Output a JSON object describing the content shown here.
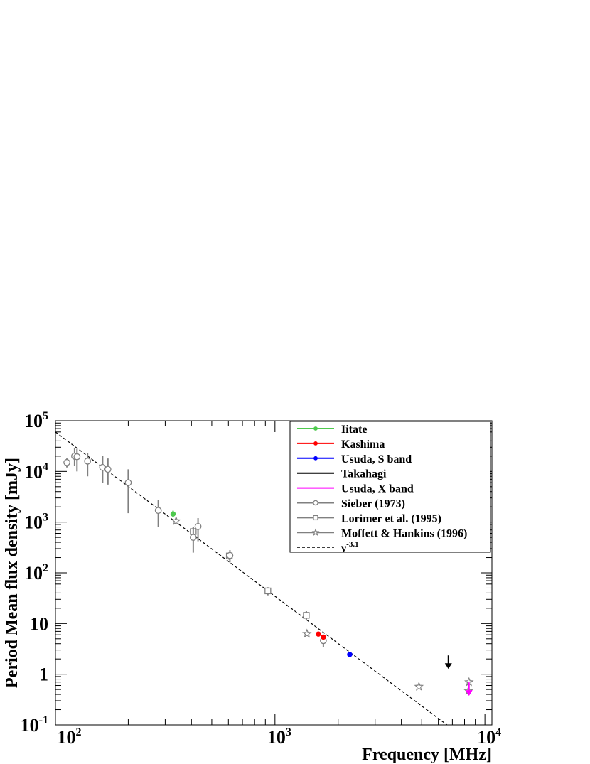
{
  "chart_data": {
    "type": "scatter",
    "title": "",
    "xlabel": "Frequency [MHz]",
    "ylabel": "Period Mean flux density [mJy]",
    "xscale": "log",
    "yscale": "log",
    "xlim": [
      90,
      10800
    ],
    "ylim": [
      0.1,
      100000
    ],
    "x_ticks": [
      {
        "value": 100,
        "base": "10",
        "exp": "2"
      },
      {
        "value": 1000,
        "base": "10",
        "exp": "3"
      },
      {
        "value": 10000,
        "base": "10",
        "exp": "4"
      }
    ],
    "y_ticks": [
      {
        "value": 100000,
        "base": "10",
        "exp": "5"
      },
      {
        "value": 10000,
        "base": "10",
        "exp": "4"
      },
      {
        "value": 1000,
        "base": "10",
        "exp": "3"
      },
      {
        "value": 100,
        "base": "10",
        "exp": "2"
      },
      {
        "value": 10,
        "base": "10",
        "exp": ""
      },
      {
        "value": 1,
        "base": "1",
        "exp": ""
      },
      {
        "value": 0.1,
        "base": "10",
        "exp": "-1"
      }
    ],
    "grid": false,
    "legend_position": "top-right",
    "series": [
      {
        "name": "Iitate",
        "color": "#4ec94e",
        "marker": "filled-circle",
        "points": [
          {
            "x": 327,
            "y": 1450,
            "ylo": 1250,
            "yhi": 1680
          }
        ]
      },
      {
        "name": "Kashima",
        "color": "#ff0000",
        "marker": "filled-circle",
        "points": [
          {
            "x": 1610,
            "y": 6.2,
            "ylo": 5.6,
            "yhi": 6.9
          },
          {
            "x": 1700,
            "y": 5.4,
            "ylo": 4.9,
            "yhi": 5.9
          }
        ]
      },
      {
        "name": "Usuda, S band",
        "color": "#0000ff",
        "marker": "filled-circle",
        "points": [
          {
            "x": 2270,
            "y": 2.45,
            "ylo": 2.3,
            "yhi": 2.6
          }
        ]
      },
      {
        "name": "Takahagi",
        "color": "#000000",
        "marker": "upper-limit",
        "points": [
          {
            "x": 6700,
            "y": 1.7
          }
        ]
      },
      {
        "name": "Usuda, X band",
        "color": "#ff00ff",
        "marker": "upper-limit",
        "points": [
          {
            "x": 8400,
            "y": 0.5
          }
        ]
      },
      {
        "name": "Sieber (1973)",
        "color": "#808080",
        "marker": "open-circle",
        "points": [
          {
            "x": 102,
            "y": 15000,
            "ylo": 12000,
            "yhi": 18000
          },
          {
            "x": 111,
            "y": 20000,
            "ylo": 13000,
            "yhi": 29000
          },
          {
            "x": 114,
            "y": 19500,
            "ylo": 10000,
            "yhi": 28000
          },
          {
            "x": 128,
            "y": 16000,
            "ylo": 8000,
            "yhi": 23000
          },
          {
            "x": 151,
            "y": 12000,
            "ylo": 6000,
            "yhi": 20000
          },
          {
            "x": 160,
            "y": 11000,
            "ylo": 5500,
            "yhi": 18000
          },
          {
            "x": 200,
            "y": 6000,
            "ylo": 1500,
            "yhi": 11000
          },
          {
            "x": 278,
            "y": 1700,
            "ylo": 800,
            "yhi": 2700
          },
          {
            "x": 408,
            "y": 500,
            "ylo": 250,
            "yhi": 800
          },
          {
            "x": 430,
            "y": 820,
            "ylo": 420,
            "yhi": 1200
          },
          {
            "x": 610,
            "y": 220,
            "ylo": 160,
            "yhi": 280
          },
          {
            "x": 1700,
            "y": 4.6,
            "ylo": 3.4,
            "yhi": 5.8
          }
        ]
      },
      {
        "name": "Lorimer et al. (1995)",
        "color": "#808080",
        "marker": "open-square",
        "points": [
          {
            "x": 408,
            "y": 650,
            "ylo": 500,
            "yhi": 800
          },
          {
            "x": 606,
            "y": 215,
            "ylo": 180,
            "yhi": 250
          },
          {
            "x": 925,
            "y": 44,
            "ylo": 36,
            "yhi": 52
          },
          {
            "x": 1410,
            "y": 14.5,
            "ylo": 11.5,
            "yhi": 17.5
          }
        ]
      },
      {
        "name": "Moffett & Hankins (1996)",
        "color": "#808080",
        "marker": "open-star",
        "points": [
          {
            "x": 338,
            "y": 1050
          },
          {
            "x": 1420,
            "y": 6.3
          },
          {
            "x": 4850,
            "y": 0.57
          },
          {
            "x": 8400,
            "y": 0.7
          },
          {
            "x": 8350,
            "y": 0.47
          }
        ]
      },
      {
        "name": "ν",
        "name_sup": "-3.1",
        "color": "#000000",
        "marker": "dashed-line",
        "line": [
          {
            "x": 90,
            "y": 60000
          },
          {
            "x": 6600,
            "y": 0.1
          }
        ]
      }
    ]
  }
}
